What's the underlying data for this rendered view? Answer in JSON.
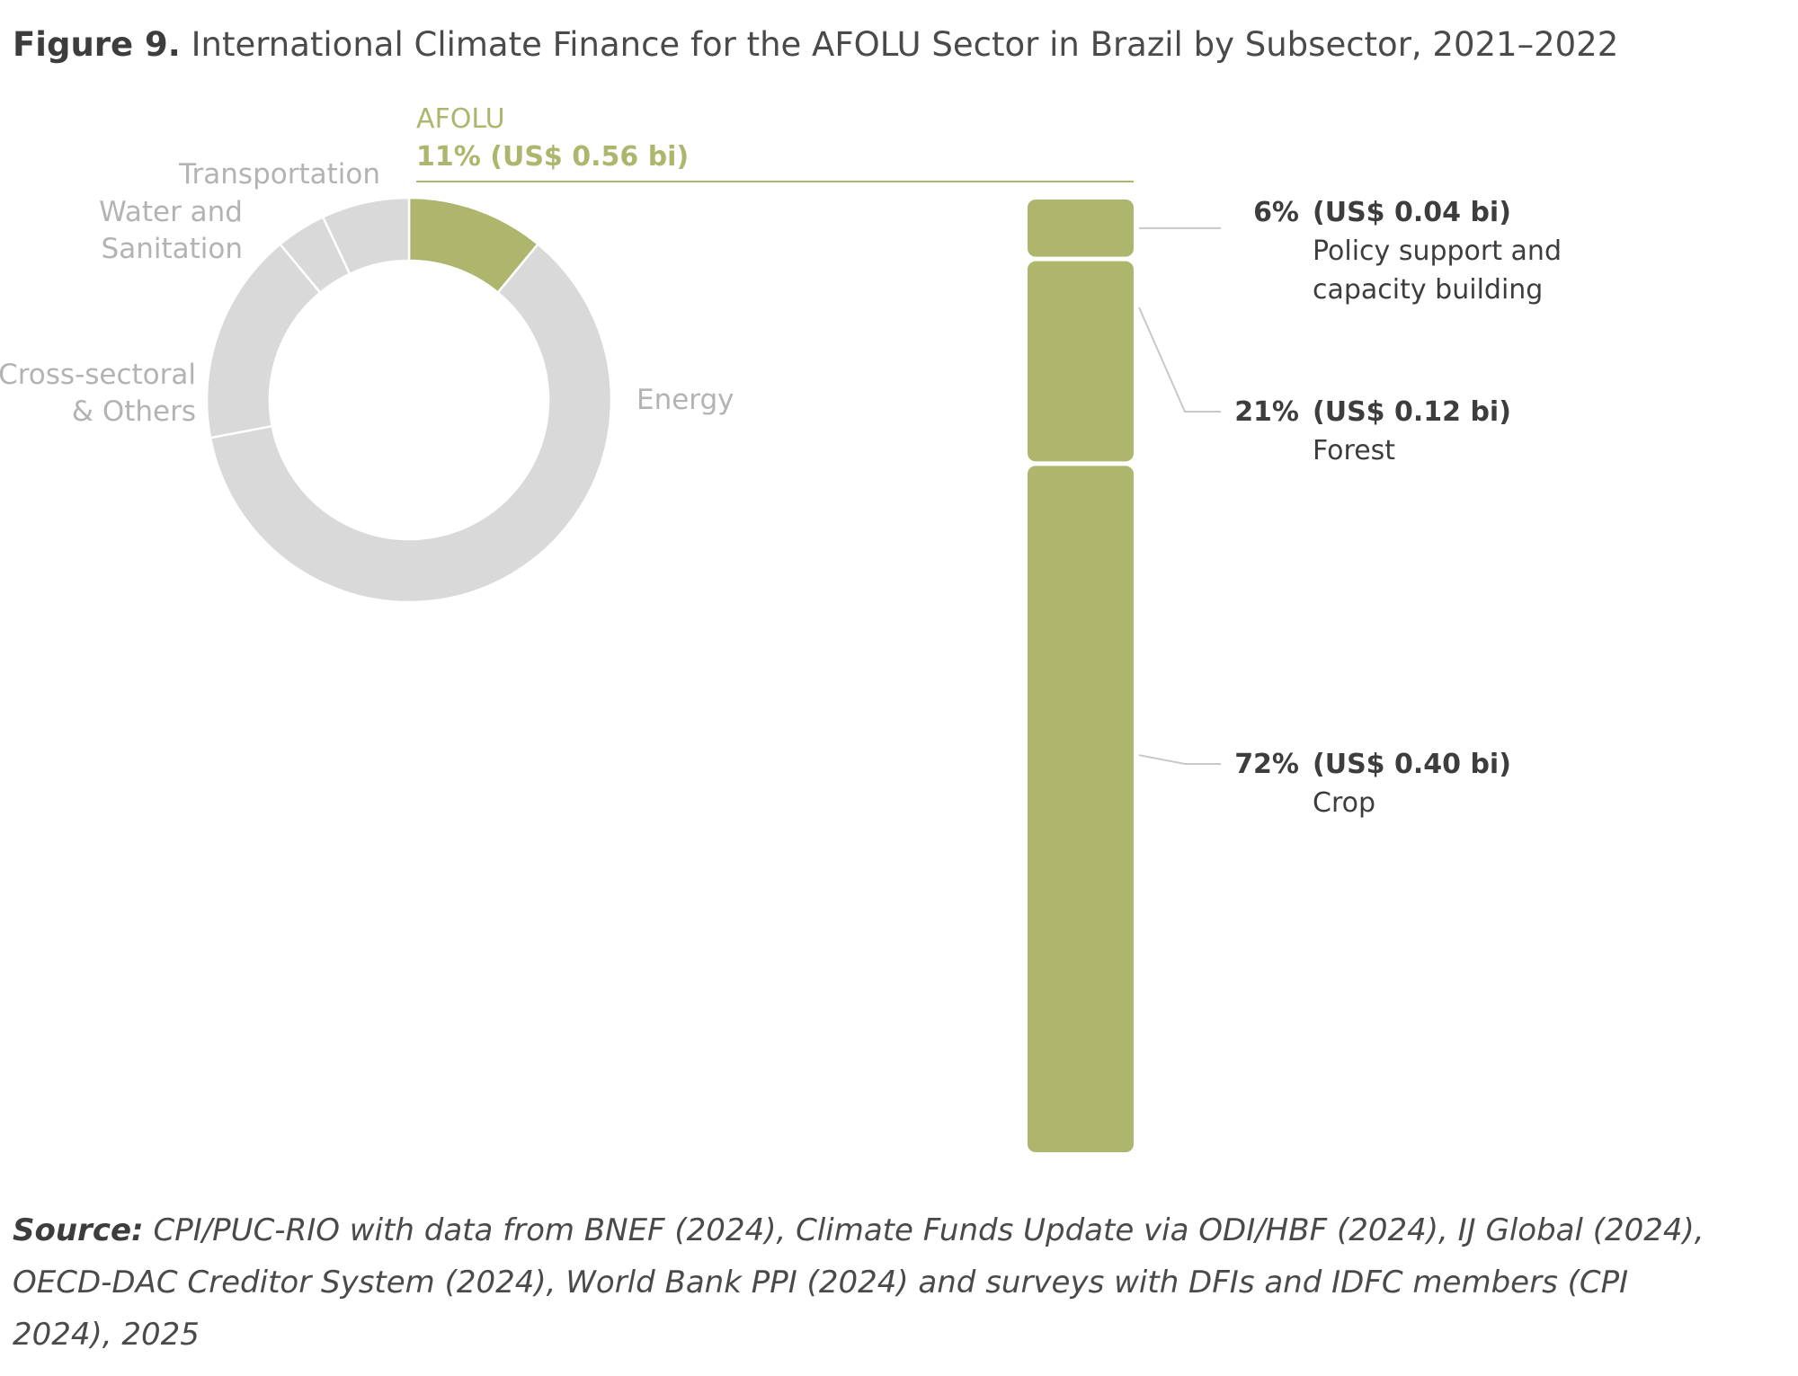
{
  "title": {
    "figure_label": "Figure 9.",
    "text": "International Climate Finance for the AFOLU Sector in Brazil by Subsector, 2021–2022"
  },
  "source": {
    "label": "Source:",
    "text": "CPI/PUC-RIO with data from BNEF (2024), Climate Funds Update via ODI/HBF (2024), IJ Global (2024), OECD-DAC Creditor System (2024), World Bank PPI (2024) and surveys with DFIs and IDFC members (CPI 2024), 2025"
  },
  "colors": {
    "highlight": "#adb66c",
    "muted": "#d9d9d9",
    "muted_text": "#b3b3b3",
    "dark_text": "#3d3d3d",
    "connector": "#c8c8c8"
  },
  "chart_data": [
    {
      "type": "pie",
      "subtype": "donut",
      "title": "",
      "slices": [
        {
          "label": "AFOLU",
          "value": 11,
          "highlight": true,
          "label_lines": [
            "AFOLU"
          ],
          "value_label": "11% (US$ 0.56 bi)"
        },
        {
          "label": "Energy",
          "value": 61,
          "highlight": false,
          "label_lines": [
            "Energy"
          ]
        },
        {
          "label": "Cross-sectoral & Others",
          "value": 17,
          "highlight": false,
          "label_lines": [
            "Cross-sectoral",
            "& Others"
          ]
        },
        {
          "label": "Water and Sanitation",
          "value": 4,
          "highlight": false,
          "label_lines": [
            "Water and",
            "Sanitation"
          ]
        },
        {
          "label": "Transportation",
          "value": 7,
          "highlight": false,
          "label_lines": [
            "Transportation"
          ]
        }
      ]
    },
    {
      "type": "bar",
      "subtype": "stacked-100",
      "title": "",
      "categories": [
        "Policy support and capacity building",
        "Forest",
        "Crop"
      ],
      "values": [
        6,
        21,
        72
      ],
      "unit": "%",
      "segments": [
        {
          "pct": "6%",
          "amount": "(US$ 0.04 bi)",
          "label_lines": [
            "Policy support and",
            "capacity building"
          ]
        },
        {
          "pct": "21%",
          "amount": "(US$ 0.12 bi)",
          "label_lines": [
            "Forest"
          ]
        },
        {
          "pct": "72%",
          "amount": "(US$ 0.40 bi)",
          "label_lines": [
            "Crop"
          ]
        }
      ]
    }
  ]
}
